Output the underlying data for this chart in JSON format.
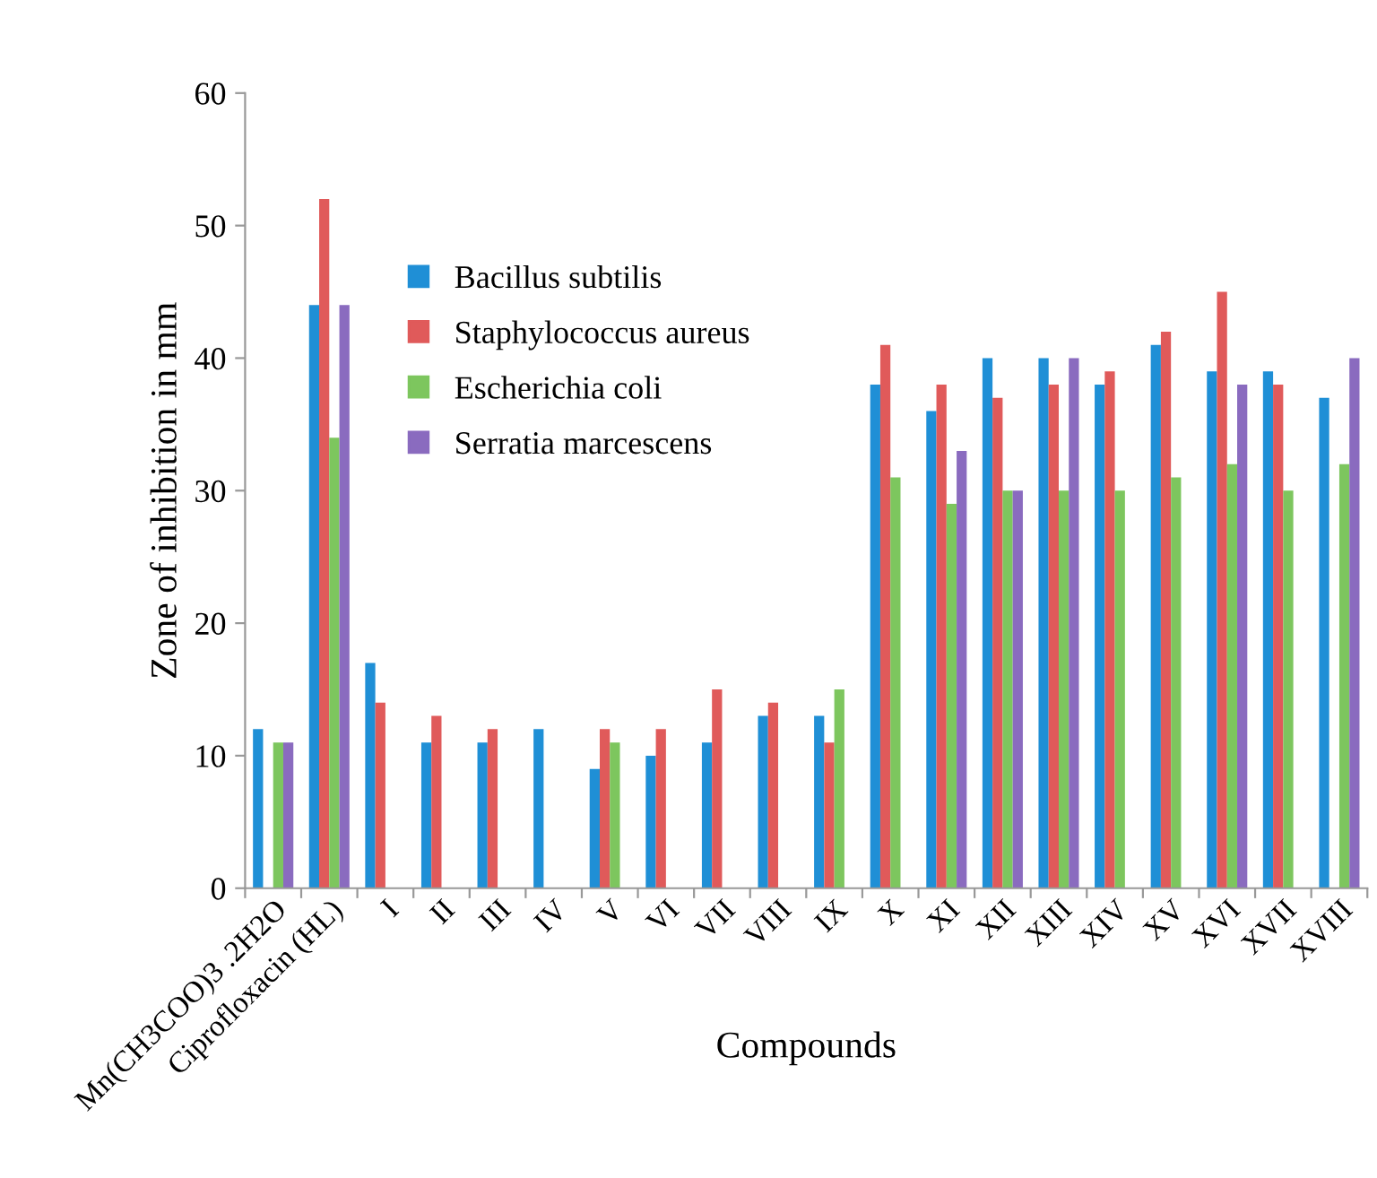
{
  "chart_data": {
    "type": "bar",
    "xlabel": "Compounds",
    "ylabel": "Zone of inhibition in mm",
    "categories": [
      "Mn(CH3COO)3 .2H2O",
      "Ciprofloxacin (HL)",
      "I",
      "II",
      "III",
      "IV",
      "V",
      "VI",
      "VII",
      "VIII",
      "IX",
      "X",
      "XI",
      "XII",
      "XIII",
      "XIV",
      "XV",
      "XVI",
      "XVII",
      "XVIII"
    ],
    "series": [
      {
        "name": "Bacillus subtilis",
        "color": "#1f8fd6",
        "values": [
          12,
          44,
          17,
          11,
          11,
          12,
          9,
          10,
          11,
          13,
          13,
          38,
          36,
          40,
          40,
          38,
          41,
          39,
          39,
          37
        ]
      },
      {
        "name": "Staphylococcus aureus",
        "color": "#e05a5a",
        "values": [
          null,
          52,
          14,
          13,
          12,
          null,
          12,
          12,
          15,
          14,
          11,
          41,
          38,
          37,
          38,
          39,
          42,
          45,
          38,
          null
        ]
      },
      {
        "name": "Escherichia coli",
        "color": "#7dc65e",
        "values": [
          11,
          34,
          null,
          null,
          null,
          null,
          11,
          null,
          null,
          null,
          15,
          31,
          29,
          30,
          30,
          30,
          31,
          32,
          30,
          32
        ]
      },
      {
        "name": "Serratia marcescens",
        "color": "#8a6bbf",
        "values": [
          11,
          44,
          null,
          null,
          null,
          null,
          null,
          null,
          null,
          null,
          null,
          null,
          33,
          30,
          40,
          null,
          null,
          38,
          null,
          40
        ]
      }
    ],
    "ylim": [
      0,
      60
    ],
    "yticks": [
      0,
      10,
      20,
      30,
      40,
      50,
      60
    ],
    "grid": false,
    "legend": "top left"
  }
}
